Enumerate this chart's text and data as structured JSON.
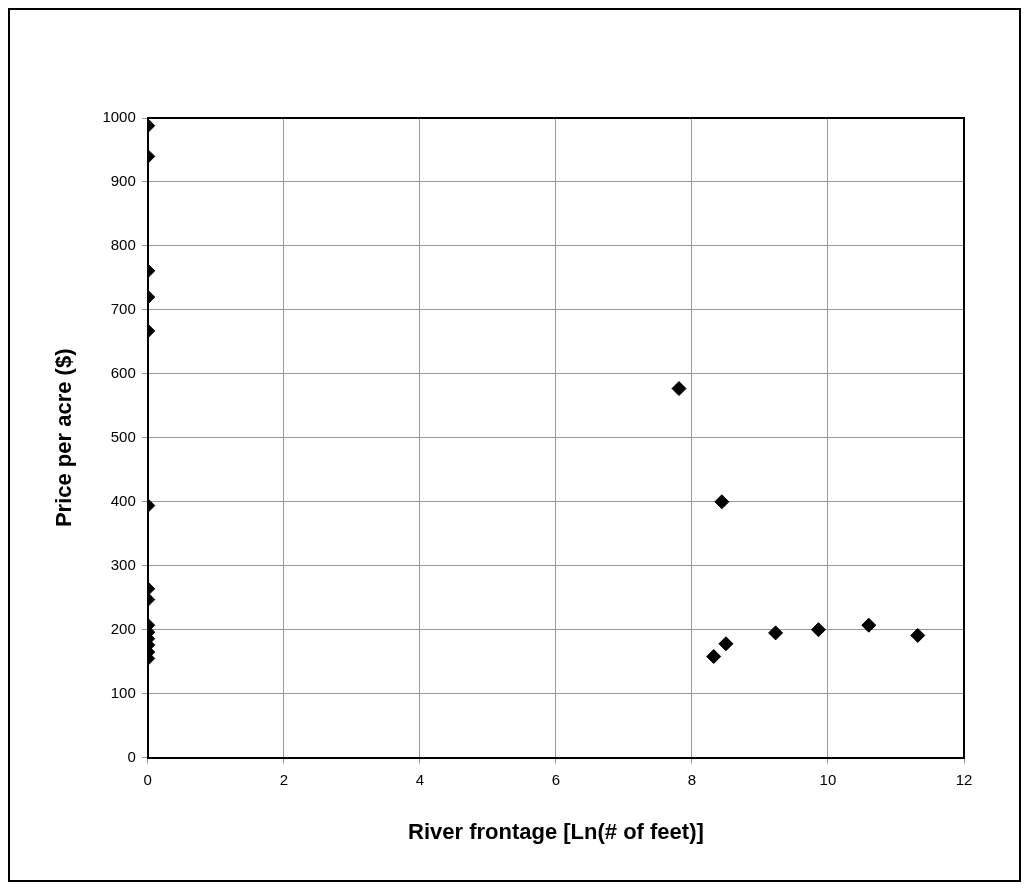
{
  "chart_data": {
    "type": "scatter",
    "xlabel": "River frontage [Ln(# of feet)]",
    "ylabel": "Price per acre ($)",
    "series": [
      {
        "color": "#000000",
        "x": [
          0,
          0,
          0,
          0,
          0,
          0,
          0,
          0,
          0,
          0,
          0,
          0,
          0,
          0,
          7.81,
          8.44,
          8.32,
          8.5,
          9.23,
          9.86,
          10.6,
          11.32
        ],
        "values": [
          988,
          940,
          761,
          720,
          667,
          394,
          264,
          247,
          207,
          196,
          186,
          176,
          165,
          155,
          577,
          400,
          158,
          178,
          195,
          200,
          207,
          191
        ]
      }
    ],
    "xlim": [
      0,
      12
    ],
    "xticks": [
      0,
      2,
      4,
      6,
      8,
      10,
      12
    ],
    "ylim": [
      0,
      1000
    ],
    "yticks": [
      0,
      100,
      200,
      300,
      400,
      500,
      600,
      700,
      800,
      900,
      1000
    ],
    "grid": true,
    "legend": false,
    "marker": "diamond"
  }
}
